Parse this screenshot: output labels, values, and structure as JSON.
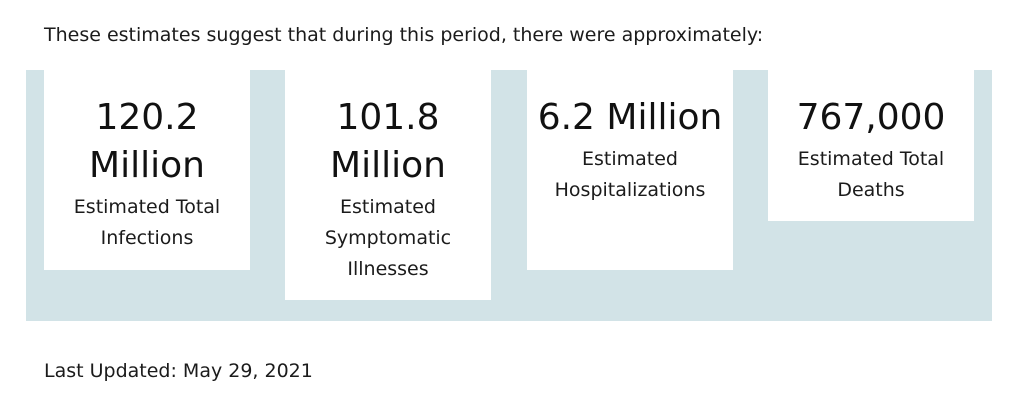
{
  "intro_text": "These estimates suggest that during this period, there were approximately:",
  "cards": [
    {
      "value": "120.2 Million",
      "label": "Estimated Total Infections"
    },
    {
      "value": "101.8 Million",
      "label": "Estimated Symptomatic Illnesses"
    },
    {
      "value": "6.2 Million",
      "label": "Estimated Hospitalizations"
    },
    {
      "value": "767,000",
      "label": "Estimated Total Deaths"
    }
  ],
  "last_updated": "Last Updated: May 29, 2021",
  "colors": {
    "panel_background": "#d2e3e7",
    "card_background": "#ffffff",
    "text": "#1b1b1b"
  }
}
